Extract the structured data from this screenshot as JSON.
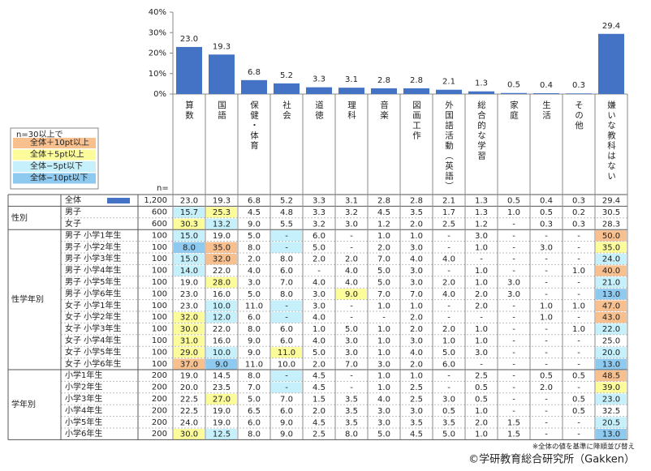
{
  "chart_data": {
    "type": "bar",
    "categories": [
      "算数",
      "国語",
      "保健・体育",
      "社会",
      "道徳",
      "理科",
      "音楽",
      "図画工作",
      "外国語活動（英語）",
      "総合的な学習",
      "家庭",
      "生活",
      "その他",
      "嫌いな教科はない"
    ],
    "values": [
      23.0,
      19.3,
      6.8,
      5.2,
      3.3,
      3.1,
      2.8,
      2.8,
      2.1,
      1.3,
      0.5,
      0.4,
      0.3,
      29.4
    ],
    "value_labels": [
      "23.0",
      "19.3",
      "6.8",
      "5.2",
      "3.3",
      "3.1",
      "2.8",
      "2.8",
      "2.1",
      "1.3",
      "0.5",
      "0.4",
      "0.3",
      "29.4"
    ],
    "color": "#4472c4",
    "ylim": [
      0,
      40
    ],
    "yticks": [
      {
        "value": 0,
        "label": "0%"
      },
      {
        "value": 10,
        "label": "10%"
      },
      {
        "value": 20,
        "label": "20%"
      },
      {
        "value": 30,
        "label": "30%"
      },
      {
        "value": 40,
        "label": "40%"
      }
    ]
  },
  "legend": {
    "title": "n=30以上で",
    "items": [
      {
        "label": "全体＋10pt以上",
        "color": "#f8c08f",
        "diff": 10
      },
      {
        "label": "全体＋5pt以上",
        "color": "#fdfc9b",
        "diff": 5
      },
      {
        "label": "全体−5pt以下",
        "color": "#c6f0fb",
        "diff": -5
      },
      {
        "label": "全体−10pt以下",
        "color": "#8ec9ef",
        "diff": -10
      }
    ]
  },
  "table": {
    "n_header": "n=",
    "total": {
      "label": "全体",
      "n": "1,200",
      "cells": [
        "23.0",
        "19.3",
        "6.8",
        "5.2",
        "3.3",
        "3.1",
        "2.8",
        "2.8",
        "2.1",
        "1.3",
        "0.5",
        "0.4",
        "0.3",
        "29.4"
      ]
    },
    "groups": [
      {
        "label": "性別",
        "rows": [
          {
            "label": "男子",
            "n": "600",
            "cells": [
              "15.7",
              "25.3",
              "4.5",
              "4.8",
              "3.3",
              "3.2",
              "4.5",
              "3.5",
              "1.7",
              "1.3",
              "1.0",
              "0.5",
              "0.2",
              "30.5"
            ]
          },
          {
            "label": "女子",
            "n": "600",
            "cells": [
              "30.3",
              "13.2",
              "9.0",
              "5.5",
              "3.2",
              "3.0",
              "1.2",
              "2.0",
              "2.5",
              "1.2",
              "-",
              "0.3",
              "0.3",
              "28.3"
            ]
          }
        ]
      },
      {
        "label": "性学年別",
        "rows": [
          {
            "label": "男子 小学1年生",
            "n": "100",
            "cells": [
              "15.0",
              "19.0",
              "5.0",
              "-",
              "6.0",
              "-",
              "1.0",
              "1.0",
              "-",
              "3.0",
              "-",
              "-",
              "-",
              "50.0"
            ]
          },
          {
            "label": "男子 小学2年生",
            "n": "100",
            "cells": [
              "8.0",
              "35.0",
              "8.0",
              "-",
              "5.0",
              "-",
              "2.0",
              "3.0",
              "-",
              "1.0",
              "-",
              "3.0",
              "-",
              "35.0"
            ]
          },
          {
            "label": "男子 小学3年生",
            "n": "100",
            "cells": [
              "15.0",
              "32.0",
              "2.0",
              "8.0",
              "2.0",
              "2.0",
              "7.0",
              "4.0",
              "4.0",
              "-",
              "-",
              "-",
              "-",
              "24.0"
            ]
          },
          {
            "label": "男子 小学4年生",
            "n": "100",
            "cells": [
              "14.0",
              "22.0",
              "4.0",
              "6.0",
              "-",
              "4.0",
              "5.0",
              "3.0",
              "-",
              "1.0",
              "-",
              "-",
              "1.0",
              "40.0"
            ]
          },
          {
            "label": "男子 小学5年生",
            "n": "100",
            "cells": [
              "19.0",
              "28.0",
              "3.0",
              "7.0",
              "4.0",
              "4.0",
              "5.0",
              "3.0",
              "2.0",
              "1.0",
              "3.0",
              "-",
              "-",
              "21.0"
            ]
          },
          {
            "label": "男子 小学6年生",
            "n": "100",
            "cells": [
              "23.0",
              "16.0",
              "5.0",
              "8.0",
              "3.0",
              "9.0",
              "7.0",
              "7.0",
              "4.0",
              "2.0",
              "3.0",
              "-",
              "-",
              "13.0"
            ]
          },
          {
            "label": "女子 小学1年生",
            "n": "100",
            "cells": [
              "23.0",
              "10.0",
              "11.0",
              "-",
              "3.0",
              "-",
              "1.0",
              "1.0",
              "-",
              "2.0",
              "-",
              "1.0",
              "1.0",
              "47.0"
            ]
          },
          {
            "label": "女子 小学2年生",
            "n": "100",
            "cells": [
              "32.0",
              "12.0",
              "6.0",
              "-",
              "4.0",
              "-",
              "-",
              "2.0",
              "-",
              "-",
              "-",
              "1.0",
              "-",
              "43.0"
            ]
          },
          {
            "label": "女子 小学3年生",
            "n": "100",
            "cells": [
              "30.0",
              "22.0",
              "8.0",
              "6.0",
              "1.0",
              "5.0",
              "1.0",
              "2.0",
              "2.0",
              "1.0",
              "-",
              "-",
              "1.0",
              "22.0"
            ]
          },
          {
            "label": "女子 小学4年生",
            "n": "100",
            "cells": [
              "31.0",
              "16.0",
              "9.0",
              "6.0",
              "4.0",
              "3.0",
              "1.0",
              "3.0",
              "1.0",
              "1.0",
              "-",
              "-",
              "-",
              "25.0"
            ]
          },
          {
            "label": "女子 小学5年生",
            "n": "100",
            "cells": [
              "29.0",
              "10.0",
              "9.0",
              "11.0",
              "5.0",
              "3.0",
              "1.0",
              "4.0",
              "5.0",
              "3.0",
              "-",
              "-",
              "-",
              "20.0"
            ]
          },
          {
            "label": "女子 小学6年生",
            "n": "100",
            "cells": [
              "37.0",
              "9.0",
              "11.0",
              "10.0",
              "2.0",
              "7.0",
              "3.0",
              "2.0",
              "6.0",
              "-",
              "-",
              "-",
              "-",
              "13.0"
            ]
          }
        ]
      },
      {
        "label": "学年別",
        "rows": [
          {
            "label": "小学1年生",
            "n": "200",
            "cells": [
              "19.0",
              "14.5",
              "8.0",
              "-",
              "4.5",
              "-",
              "1.0",
              "1.0",
              "-",
              "2.5",
              "-",
              "0.5",
              "0.5",
              "48.5"
            ]
          },
          {
            "label": "小学2年生",
            "n": "200",
            "cells": [
              "20.0",
              "23.5",
              "7.0",
              "-",
              "4.5",
              "-",
              "1.0",
              "2.5",
              "-",
              "0.5",
              "-",
              "2.0",
              "-",
              "39.0"
            ]
          },
          {
            "label": "小学3年生",
            "n": "200",
            "cells": [
              "22.5",
              "27.0",
              "5.0",
              "7.0",
              "1.5",
              "3.5",
              "4.0",
              "2.5",
              "3.0",
              "0.5",
              "-",
              "-",
              "0.5",
              "23.0"
            ]
          },
          {
            "label": "小学4年生",
            "n": "200",
            "cells": [
              "22.5",
              "19.0",
              "6.5",
              "6.0",
              "2.0",
              "3.5",
              "3.0",
              "3.0",
              "0.5",
              "1.0",
              "-",
              "-",
              "0.5",
              "32.5"
            ]
          },
          {
            "label": "小学5年生",
            "n": "200",
            "cells": [
              "24.0",
              "19.0",
              "6.0",
              "9.0",
              "4.5",
              "3.5",
              "3.0",
              "3.5",
              "3.5",
              "2.0",
              "1.5",
              "-",
              "-",
              "20.5"
            ]
          },
          {
            "label": "小学6年生",
            "n": "200",
            "cells": [
              "30.0",
              "12.5",
              "8.0",
              "9.0",
              "2.5",
              "8.0",
              "5.0",
              "4.5",
              "5.0",
              "1.0",
              "1.5",
              "-",
              "-",
              "13.0"
            ]
          }
        ]
      }
    ]
  },
  "notes": [
    "※全体の値を基準に降順並び替え",
    "©学研教育総合研究所（Gakken）"
  ]
}
